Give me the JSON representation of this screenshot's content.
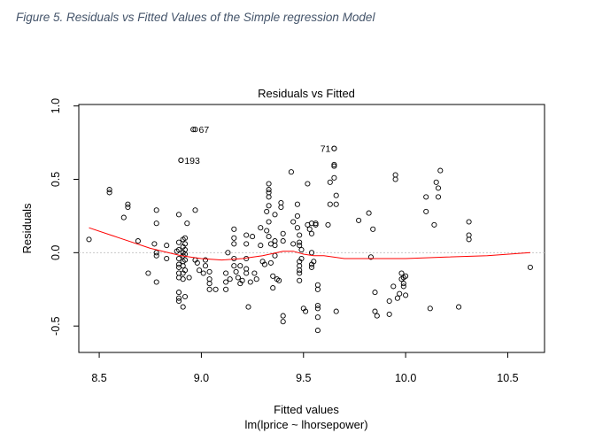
{
  "figure_caption": "Figure 5. Residuals vs Fitted Values of the Simple regression Model",
  "chart_data": {
    "type": "scatter",
    "title": "Residuals vs Fitted",
    "xlabel": "Fitted values",
    "subtitle": "lm(lprice ~ lhorsepower)",
    "ylabel": "Residuals",
    "xlim": [
      8.4,
      10.68
    ],
    "ylim": [
      -0.68,
      1.01
    ],
    "x_ticks": [
      8.5,
      9.0,
      9.5,
      10.0,
      10.5
    ],
    "x_tick_labels": [
      "8.5",
      "9.0",
      "9.5",
      "10.0",
      "10.5"
    ],
    "y_ticks": [
      -0.5,
      0.0,
      0.5,
      1.0
    ],
    "y_tick_labels": [
      "-0.5",
      "0.0",
      "0.5",
      "1.0"
    ],
    "reference_line": 0,
    "reference_color": "#c8c8c8",
    "smoother_color": "#ff0000",
    "labeled_points": [
      {
        "label": "67",
        "x": 8.97,
        "y": 0.84
      },
      {
        "label": "193",
        "x": 8.9,
        "y": 0.63
      },
      {
        "label": "71",
        "x": 9.65,
        "y": 0.71
      }
    ],
    "points": [
      [
        8.45,
        0.09
      ],
      [
        8.55,
        0.43
      ],
      [
        8.55,
        0.41
      ],
      [
        8.62,
        0.24
      ],
      [
        8.64,
        0.33
      ],
      [
        8.64,
        0.31
      ],
      [
        8.69,
        0.08
      ],
      [
        8.74,
        -0.14
      ],
      [
        8.77,
        0.06
      ],
      [
        8.78,
        0.29
      ],
      [
        8.78,
        0.2
      ],
      [
        8.78,
        0.0
      ],
      [
        8.78,
        -0.02
      ],
      [
        8.78,
        -0.2
      ],
      [
        8.83,
        0.05
      ],
      [
        8.83,
        -0.04
      ],
      [
        8.88,
        0.01
      ],
      [
        8.89,
        0.26
      ],
      [
        8.89,
        0.07
      ],
      [
        8.89,
        0.02
      ],
      [
        8.89,
        -0.04
      ],
      [
        8.89,
        -0.08
      ],
      [
        8.89,
        -0.1
      ],
      [
        8.89,
        -0.14
      ],
      [
        8.89,
        -0.17
      ],
      [
        8.89,
        -0.27
      ],
      [
        8.89,
        -0.31
      ],
      [
        8.89,
        -0.33
      ],
      [
        8.9,
        0.63
      ],
      [
        8.91,
        0.09
      ],
      [
        8.91,
        0.04
      ],
      [
        8.91,
        0.0
      ],
      [
        8.91,
        -0.02
      ],
      [
        8.91,
        -0.06
      ],
      [
        8.91,
        -0.09
      ],
      [
        8.91,
        -0.14
      ],
      [
        8.91,
        -0.18
      ],
      [
        8.91,
        -0.37
      ],
      [
        8.92,
        0.1
      ],
      [
        8.92,
        0.06
      ],
      [
        8.92,
        0.02
      ],
      [
        8.92,
        -0.01
      ],
      [
        8.92,
        -0.05
      ],
      [
        8.92,
        -0.12
      ],
      [
        8.92,
        -0.3
      ],
      [
        8.93,
        0.2
      ],
      [
        8.94,
        -0.17
      ],
      [
        8.96,
        0.84
      ],
      [
        8.97,
        0.29
      ],
      [
        8.97,
        -0.05
      ],
      [
        8.98,
        -0.07
      ],
      [
        8.99,
        -0.12
      ],
      [
        9.01,
        -0.14
      ],
      [
        9.02,
        -0.05
      ],
      [
        9.02,
        -0.09
      ],
      [
        9.04,
        -0.13
      ],
      [
        9.04,
        -0.18
      ],
      [
        9.04,
        -0.21
      ],
      [
        9.04,
        -0.25
      ],
      [
        9.07,
        -0.25
      ],
      [
        9.12,
        -0.14
      ],
      [
        9.12,
        -0.2
      ],
      [
        9.12,
        -0.25
      ],
      [
        9.13,
        0.0
      ],
      [
        9.14,
        -0.18
      ],
      [
        9.16,
        0.16
      ],
      [
        9.16,
        0.1
      ],
      [
        9.16,
        0.06
      ],
      [
        9.16,
        -0.04
      ],
      [
        9.16,
        -0.09
      ],
      [
        9.17,
        -0.13
      ],
      [
        9.18,
        -0.17
      ],
      [
        9.19,
        -0.09
      ],
      [
        9.19,
        -0.21
      ],
      [
        9.2,
        -0.19
      ],
      [
        9.22,
        0.12
      ],
      [
        9.22,
        0.06
      ],
      [
        9.22,
        -0.04
      ],
      [
        9.22,
        -0.11
      ],
      [
        9.22,
        -0.14
      ],
      [
        9.23,
        -0.37
      ],
      [
        9.24,
        -0.2
      ],
      [
        9.25,
        0.11
      ],
      [
        9.26,
        -0.14
      ],
      [
        9.27,
        -0.18
      ],
      [
        9.29,
        0.17
      ],
      [
        9.29,
        0.05
      ],
      [
        9.3,
        -0.06
      ],
      [
        9.31,
        -0.08
      ],
      [
        9.32,
        0.28
      ],
      [
        9.32,
        0.15
      ],
      [
        9.33,
        0.47
      ],
      [
        9.33,
        0.43
      ],
      [
        9.33,
        0.41
      ],
      [
        9.33,
        0.38
      ],
      [
        9.33,
        0.32
      ],
      [
        9.33,
        0.21
      ],
      [
        9.33,
        0.11
      ],
      [
        9.34,
        0.06
      ],
      [
        9.34,
        -0.07
      ],
      [
        9.35,
        -0.24
      ],
      [
        9.35,
        -0.16
      ],
      [
        9.36,
        0.26
      ],
      [
        9.36,
        0.08
      ],
      [
        9.36,
        0.05
      ],
      [
        9.36,
        -0.02
      ],
      [
        9.37,
        -0.18
      ],
      [
        9.38,
        -0.19
      ],
      [
        9.39,
        0.34
      ],
      [
        9.39,
        0.31
      ],
      [
        9.4,
        0.13
      ],
      [
        9.4,
        0.08
      ],
      [
        9.4,
        -0.43
      ],
      [
        9.4,
        -0.47
      ],
      [
        9.44,
        0.55
      ],
      [
        9.45,
        0.21
      ],
      [
        9.45,
        0.06
      ],
      [
        9.47,
        0.33
      ],
      [
        9.47,
        0.25
      ],
      [
        9.47,
        0.17
      ],
      [
        9.48,
        0.12
      ],
      [
        9.48,
        0.07
      ],
      [
        9.48,
        0.05
      ],
      [
        9.48,
        -0.06
      ],
      [
        9.48,
        -0.09
      ],
      [
        9.48,
        -0.12
      ],
      [
        9.48,
        -0.14
      ],
      [
        9.48,
        -0.19
      ],
      [
        9.49,
        0.02
      ],
      [
        9.49,
        -0.04
      ],
      [
        9.5,
        -0.38
      ],
      [
        9.51,
        -0.4
      ],
      [
        9.52,
        0.47
      ],
      [
        9.52,
        0.19
      ],
      [
        9.53,
        0.16
      ],
      [
        9.54,
        0.13
      ],
      [
        9.54,
        0.2
      ],
      [
        9.54,
        0.0
      ],
      [
        9.54,
        -0.08
      ],
      [
        9.54,
        -0.1
      ],
      [
        9.55,
        -0.06
      ],
      [
        9.56,
        0.19
      ],
      [
        9.56,
        0.2
      ],
      [
        9.57,
        -0.22
      ],
      [
        9.57,
        -0.25
      ],
      [
        9.57,
        -0.36
      ],
      [
        9.57,
        -0.38
      ],
      [
        9.57,
        -0.44
      ],
      [
        9.57,
        -0.53
      ],
      [
        9.62,
        0.19
      ],
      [
        9.63,
        0.33
      ],
      [
        9.63,
        0.48
      ],
      [
        9.65,
        0.71
      ],
      [
        9.65,
        0.6
      ],
      [
        9.65,
        0.59
      ],
      [
        9.65,
        0.51
      ],
      [
        9.66,
        0.39
      ],
      [
        9.66,
        0.33
      ],
      [
        9.66,
        -0.4
      ],
      [
        9.77,
        0.22
      ],
      [
        9.82,
        0.27
      ],
      [
        9.83,
        -0.03
      ],
      [
        9.84,
        0.16
      ],
      [
        9.85,
        -0.27
      ],
      [
        9.85,
        -0.4
      ],
      [
        9.86,
        -0.43
      ],
      [
        9.92,
        -0.42
      ],
      [
        9.92,
        -0.33
      ],
      [
        9.94,
        -0.23
      ],
      [
        9.95,
        0.53
      ],
      [
        9.95,
        0.5
      ],
      [
        9.96,
        -0.31
      ],
      [
        9.97,
        -0.28
      ],
      [
        9.98,
        -0.14
      ],
      [
        9.98,
        -0.18
      ],
      [
        9.99,
        -0.17
      ],
      [
        9.99,
        -0.21
      ],
      [
        9.99,
        -0.23
      ],
      [
        10.0,
        -0.16
      ],
      [
        10.0,
        -0.29
      ],
      [
        10.1,
        0.38
      ],
      [
        10.1,
        0.28
      ],
      [
        10.12,
        -0.38
      ],
      [
        10.14,
        0.19
      ],
      [
        10.15,
        0.48
      ],
      [
        10.16,
        0.44
      ],
      [
        10.16,
        0.38
      ],
      [
        10.17,
        0.56
      ],
      [
        10.26,
        -0.37
      ],
      [
        10.31,
        0.21
      ],
      [
        10.31,
        0.12
      ],
      [
        10.31,
        0.09
      ],
      [
        10.61,
        -0.1
      ]
    ],
    "smoother": [
      [
        8.45,
        0.17
      ],
      [
        8.6,
        0.1
      ],
      [
        8.75,
        0.03
      ],
      [
        8.9,
        -0.02
      ],
      [
        9.0,
        -0.04
      ],
      [
        9.1,
        -0.05
      ],
      [
        9.2,
        -0.04
      ],
      [
        9.3,
        -0.02
      ],
      [
        9.4,
        0.01
      ],
      [
        9.45,
        0.01
      ],
      [
        9.5,
        -0.01
      ],
      [
        9.55,
        -0.02
      ],
      [
        9.6,
        -0.02
      ],
      [
        9.7,
        -0.04
      ],
      [
        9.8,
        -0.04
      ],
      [
        9.9,
        -0.04
      ],
      [
        10.0,
        -0.04
      ],
      [
        10.2,
        -0.03
      ],
      [
        10.4,
        -0.02
      ],
      [
        10.61,
        0.0
      ]
    ]
  }
}
